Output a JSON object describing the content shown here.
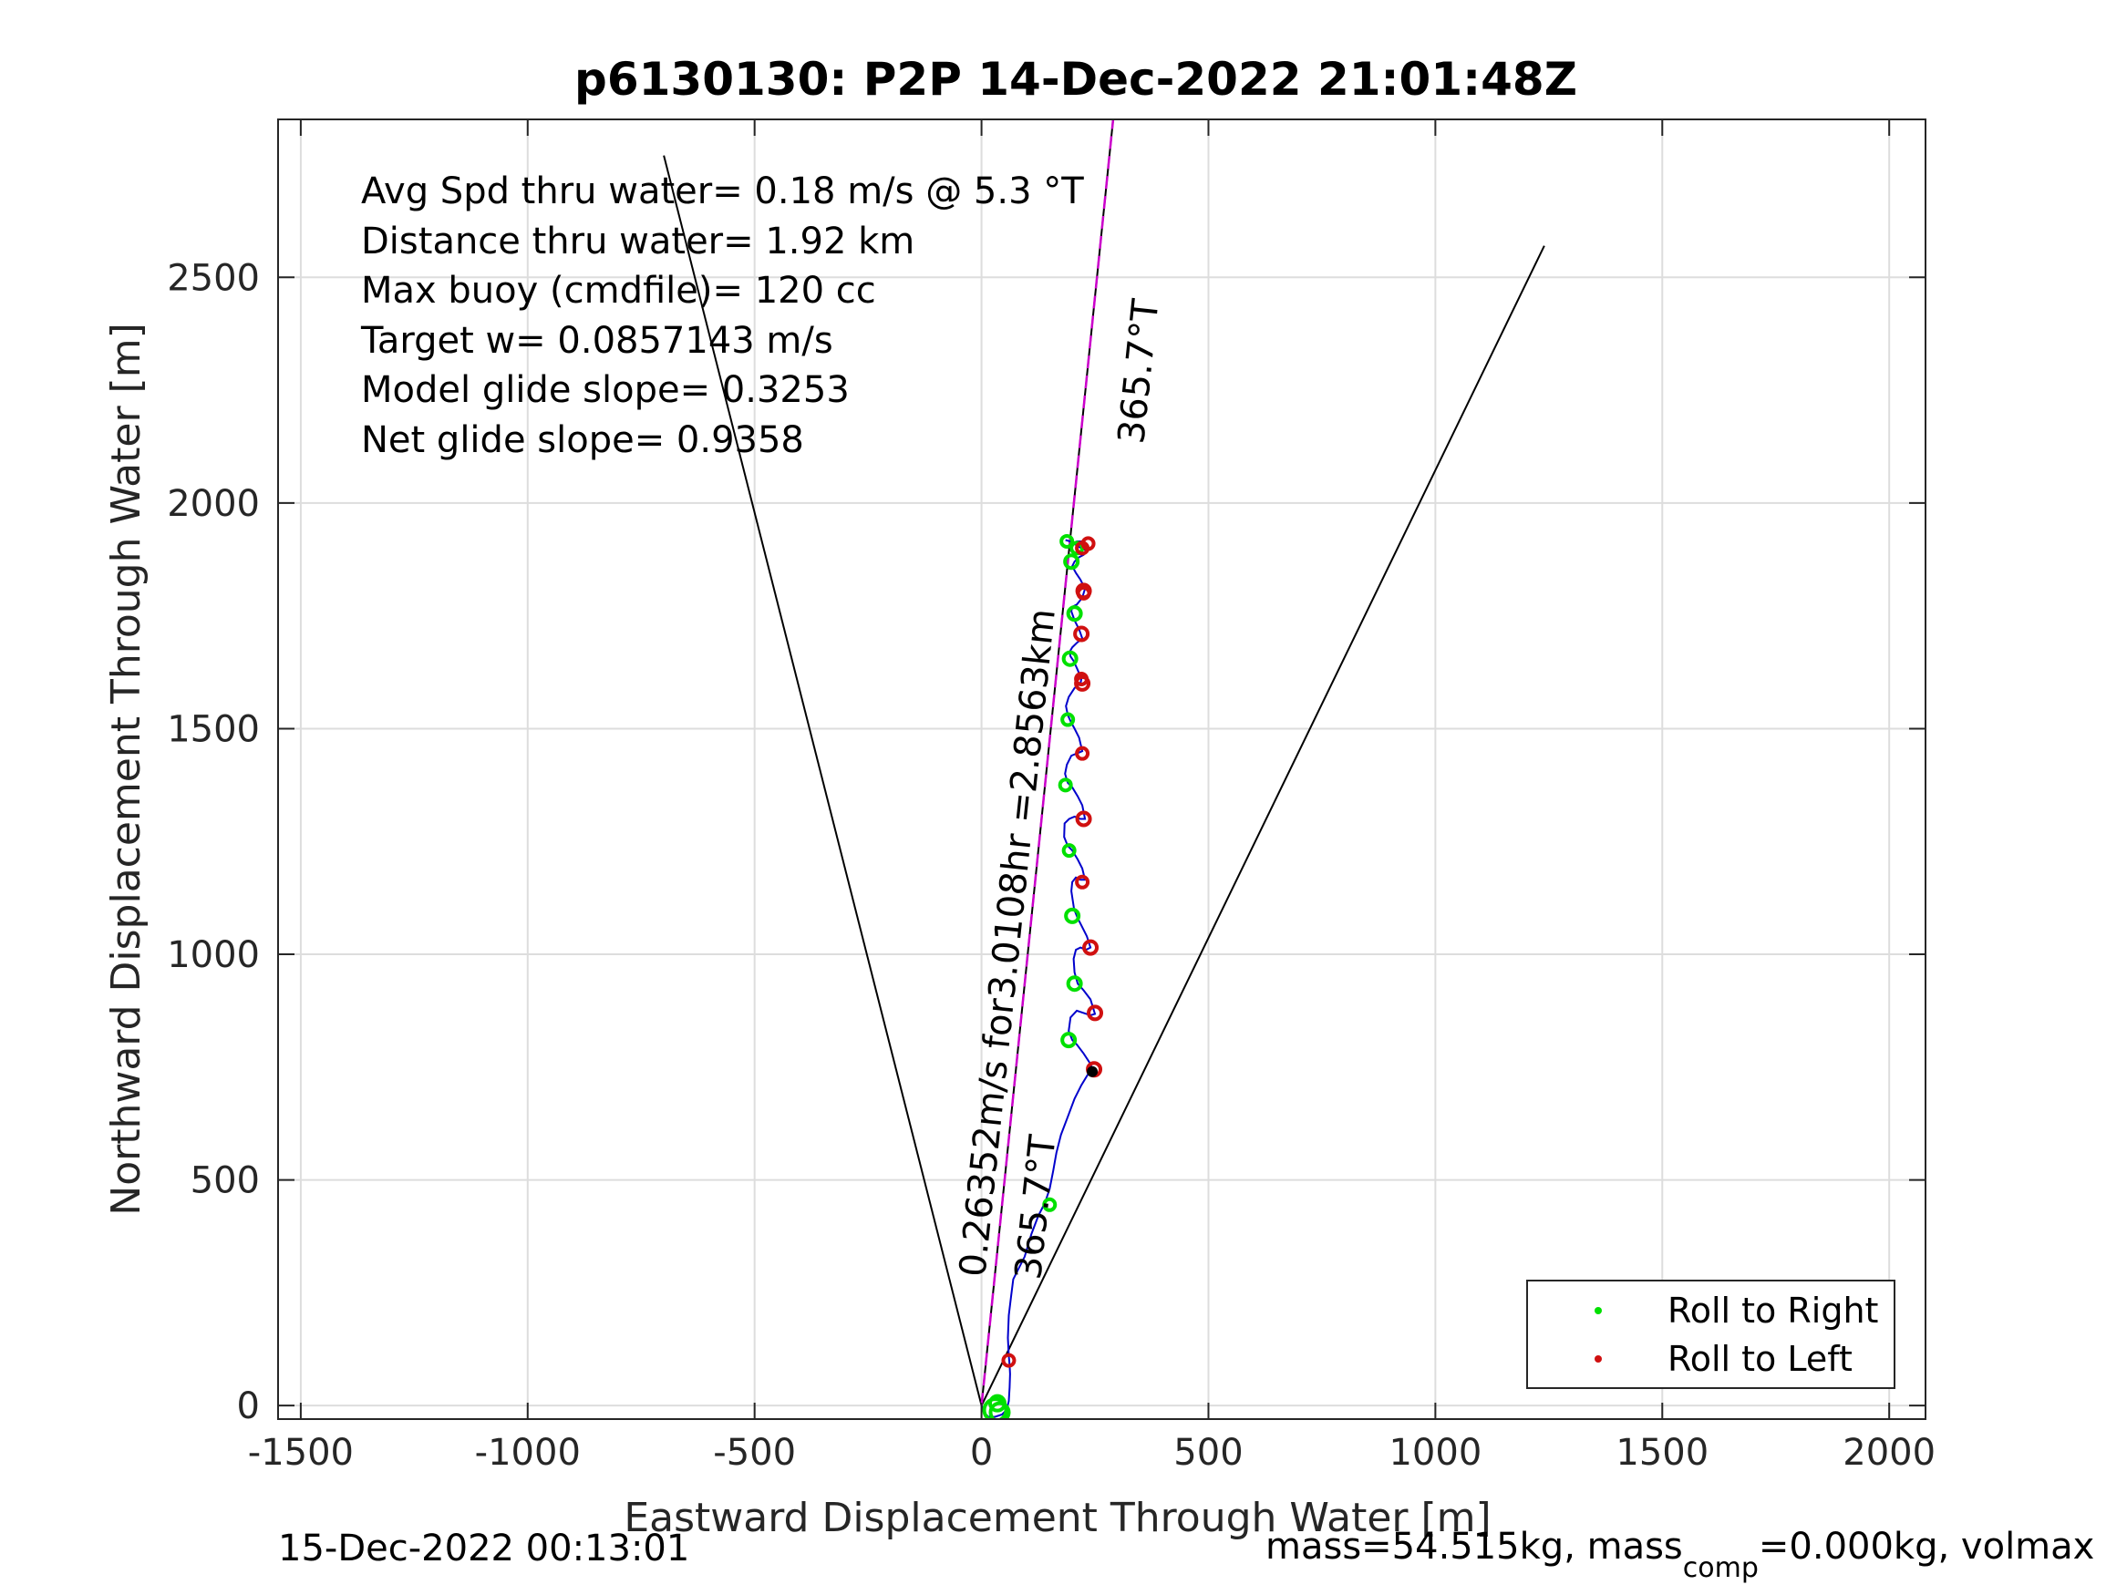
{
  "chart_data": {
    "type": "line",
    "title": "p6130130: P2P 14-Dec-2022 21:01:48Z",
    "xlabel": "Eastward Displacement Through Water [m]",
    "ylabel": "Northward Displacement Through Water [m]",
    "xlim": [
      -1550,
      2080
    ],
    "ylim": [
      -30,
      2850
    ],
    "xticks": [
      "-1500",
      "-1000",
      "-500",
      "0",
      "500",
      "1000",
      "1500",
      "2000"
    ],
    "yticks": [
      "0",
      "500",
      "1000",
      "1500",
      "2000",
      "2500"
    ],
    "grid": true,
    "legend_position": "bottom-right",
    "legend": [
      "Roll to Right",
      "Roll to Left"
    ],
    "stats_text": [
      "Avg Spd thru water=  0.18 m/s @   5.3 °T",
      "Distance thru water=  1.92 km",
      "Max buoy (cmdfile)= 120 cc",
      "Target w= 0.0857143 m/s",
      "Model glide slope= 0.3253",
      "Net glide slope= 0.9358"
    ],
    "annotations": {
      "heading_label_top": "365.7°T",
      "heading_label_bottom": "365.7°T",
      "speed_label": "0.26352m/s for3.0108hr =2.8563km"
    },
    "footer_left": "15-Dec-2022 00:13:01",
    "footer_right_prefix": "mass=54.515kg, mass",
    "footer_right_sub": "comp",
    "footer_right_suffix": "=0.000kg, volmax",
    "colors": {
      "track": "#0000cc",
      "roll_right": "#00e000",
      "roll_left": "#d01010",
      "heading_line": "#cc00cc",
      "lines": "#000000",
      "grid": "#dddddd"
    },
    "cone_lines": [
      {
        "x": [
          0,
          -700
        ],
        "y": [
          0,
          2770
        ]
      },
      {
        "x": [
          0,
          1240
        ],
        "y": [
          0,
          2570
        ]
      }
    ],
    "heading_line": {
      "x": [
        0,
        290
      ],
      "y": [
        0,
        2850
      ]
    },
    "track": {
      "x": [
        0,
        5,
        15,
        30,
        45,
        55,
        60,
        62,
        63,
        62,
        60,
        58,
        60,
        65,
        70,
        80,
        95,
        110,
        125,
        140,
        150,
        158,
        165,
        175,
        190,
        205,
        220,
        235,
        245,
        238,
        225,
        210,
        200,
        192,
        196,
        210,
        225,
        240,
        250,
        240,
        225,
        212,
        205,
        203,
        208,
        218,
        230,
        240,
        232,
        222,
        212,
        204,
        198,
        200,
        208,
        218,
        228,
        222,
        212,
        200,
        190,
        182,
        183,
        193,
        205,
        218,
        228,
        222,
        212,
        200,
        190,
        184,
        188,
        198,
        210,
        222,
        215,
        205,
        197,
        190,
        186,
        192,
        205,
        218,
        220,
        212,
        203,
        196,
        194,
        200,
        210,
        222,
        215,
        205,
        198,
        200,
        210,
        222,
        228,
        218,
        208,
        200,
        205,
        215,
        225,
        230,
        220,
        210,
        205,
        210,
        220,
        222,
        215,
        205,
        195,
        185
      ],
      "y": [
        0,
        -15,
        -25,
        -25,
        -20,
        -10,
        10,
        40,
        70,
        90,
        110,
        150,
        200,
        240,
        280,
        300,
        330,
        380,
        420,
        450,
        480,
        520,
        560,
        600,
        640,
        680,
        710,
        735,
        745,
        760,
        780,
        800,
        810,
        830,
        860,
        875,
        870,
        865,
        868,
        900,
        920,
        935,
        960,
        990,
        1010,
        1015,
        1010,
        1015,
        1040,
        1060,
        1080,
        1100,
        1140,
        1160,
        1170,
        1165,
        1165,
        1190,
        1210,
        1230,
        1240,
        1260,
        1290,
        1300,
        1305,
        1300,
        1300,
        1330,
        1350,
        1370,
        1380,
        1400,
        1420,
        1440,
        1445,
        1450,
        1480,
        1500,
        1515,
        1530,
        1550,
        1570,
        1590,
        1600,
        1610,
        1630,
        1650,
        1660,
        1670,
        1680,
        1690,
        1700,
        1720,
        1740,
        1760,
        1770,
        1775,
        1790,
        1810,
        1830,
        1845,
        1860,
        1870,
        1880,
        1885,
        1895,
        1900,
        1905,
        1910,
        1915,
        1915,
        1912,
        1910,
        1912,
        1915,
        1918
      ]
    },
    "roll_right_points": {
      "x": [
        30,
        40,
        35,
        150,
        192,
        205,
        200,
        193,
        185,
        190,
        195,
        205,
        198,
        210,
        188
      ],
      "y": [
        -10,
        -15,
        5,
        445,
        810,
        935,
        1085,
        1230,
        1375,
        1520,
        1655,
        1755,
        1870,
        1900,
        1915
      ],
      "r": [
        12,
        10,
        8,
        6,
        7,
        7,
        7,
        6,
        6,
        6,
        7,
        7,
        7,
        6,
        6
      ]
    },
    "roll_left_points": {
      "x": [
        248,
        250,
        240,
        222,
        225,
        222,
        222,
        220,
        225,
        235,
        222,
        225,
        220,
        60
      ],
      "y": [
        745,
        870,
        1015,
        1160,
        1300,
        1445,
        1600,
        1710,
        1805,
        1910,
        1900,
        1800,
        1610,
        100
      ],
      "r": [
        7,
        7,
        7,
        6,
        7,
        6,
        7,
        7,
        7,
        6,
        6,
        6,
        6,
        6
      ]
    },
    "black_marker": {
      "x": [
        244
      ],
      "y": [
        740
      ]
    }
  }
}
